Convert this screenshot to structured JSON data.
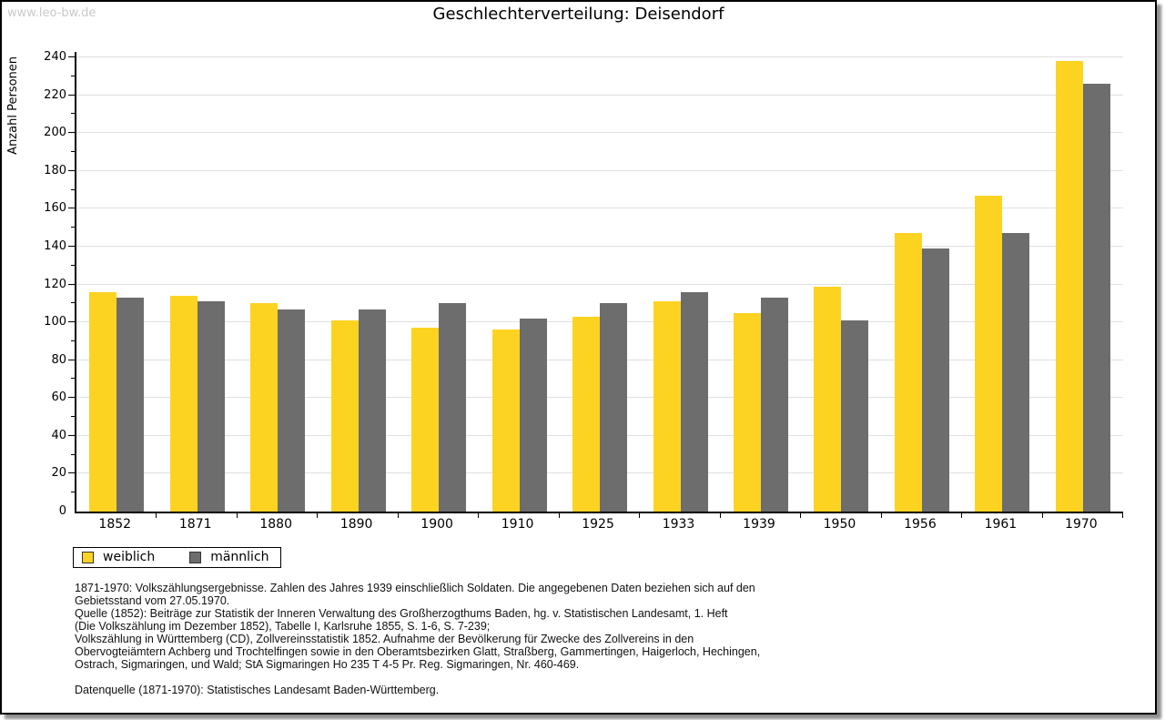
{
  "watermark": "www.leo-bw.de",
  "title": "Geschlechterverteilung: Deisendorf",
  "chart_data": {
    "type": "bar",
    "title": "Geschlechterverteilung: Deisendorf",
    "ylabel": "Anzahl Personen",
    "ylim": [
      0,
      240
    ],
    "ytick_step": 20,
    "ytick_minor_step": 10,
    "grid": true,
    "legend_position": "bottom-left",
    "categories": [
      "1852",
      "1871",
      "1880",
      "1890",
      "1900",
      "1910",
      "1925",
      "1933",
      "1939",
      "1950",
      "1956",
      "1961",
      "1970"
    ],
    "series": [
      {
        "name": "weiblich",
        "color": "#FDD321",
        "values": [
          116,
          114,
          110,
          101,
          97,
          96,
          103,
          111,
          105,
          119,
          147,
          167,
          238
        ]
      },
      {
        "name": "männlich",
        "color": "#6D6D6D",
        "values": [
          113,
          111,
          107,
          107,
          110,
          102,
          110,
          116,
          113,
          101,
          139,
          147,
          226
        ]
      }
    ]
  },
  "colors": {
    "grid": "#E0E0E0",
    "axis": "#000000",
    "watermark": "#C9C9C9",
    "frame_border": "#000000"
  },
  "footnotes": {
    "lines": [
      "1871-1970: Volkszählungsergebnisse. Zahlen des Jahres 1939 einschließlich Soldaten. Die angegebenen Daten beziehen sich auf den",
      "Gebietsstand vom 27.05.1970.",
      "Quelle (1852): Beiträge zur Statistik der Inneren Verwaltung des Großherzogthums Baden, hg. v. Statistischen Landesamt, 1. Heft",
      "(Die Volkszählung im Dezember 1852), Tabelle I, Karlsruhe 1855, S. 1-6, S. 7-239;",
      "Volkszählung in Württemberg (CD), Zollvereinsstatistik 1852. Aufnahme der Bevölkerung für Zwecke des Zollvereins in den",
      "Obervogteiämtern Achberg und Trochtelfingen sowie in den Oberamtsbezirken Glatt, Straßberg, Gammertingen, Haigerloch, Hechingen,",
      "Ostrach, Sigmaringen, und Wald; StA Sigmaringen Ho 235 T 4-5 Pr. Reg. Sigmaringen, Nr. 460-469."
    ],
    "datasource": "Datenquelle (1871-1970): Statistisches Landesamt Baden-Württemberg."
  }
}
